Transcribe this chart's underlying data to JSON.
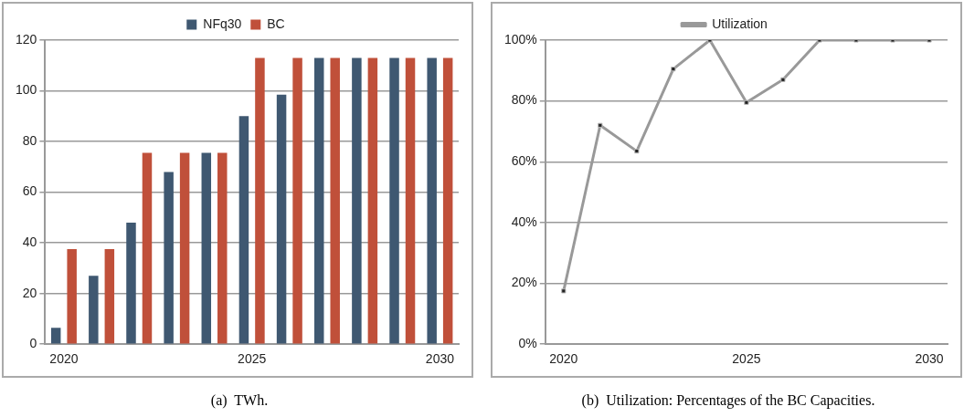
{
  "chart_data": [
    {
      "type": "bar",
      "title": "(a)  TWh.",
      "categories": [
        "2020",
        null,
        null,
        null,
        null,
        "2025",
        null,
        null,
        null,
        null,
        "2030"
      ],
      "series": [
        {
          "name": "NFq30",
          "color": "#3f5871",
          "values": [
            6.5,
            27,
            48,
            68,
            75.5,
            90,
            98.5,
            113,
            113,
            113,
            113
          ]
        },
        {
          "name": "BC",
          "color": "#c0503a",
          "values": [
            37.5,
            37.5,
            75.5,
            75.5,
            75.5,
            113,
            113,
            113,
            113,
            113,
            113
          ]
        }
      ],
      "ylim": [
        0,
        120
      ],
      "yticks": [
        0,
        20,
        40,
        60,
        80,
        100,
        120
      ],
      "grid": "y",
      "legend": "top"
    },
    {
      "type": "line",
      "title": "(b)  Utilization: Percentages of the BC Capacities.",
      "categories": [
        "2020",
        null,
        null,
        null,
        null,
        "2025",
        null,
        null,
        null,
        null,
        "2030"
      ],
      "series": [
        {
          "name": "Utilization",
          "color": "#999999",
          "values": [
            17.5,
            72,
            63.5,
            90.5,
            100,
            79.5,
            87,
            100,
            100,
            100,
            100
          ]
        }
      ],
      "ylim": [
        0,
        100
      ],
      "yticks": [
        {
          "value": 0,
          "label": "0%"
        },
        {
          "value": 20,
          "label": "20%"
        },
        {
          "value": 40,
          "label": "40%"
        },
        {
          "value": 60,
          "label": "60%"
        },
        {
          "value": 80,
          "label": "80%"
        },
        {
          "value": 100,
          "label": "100%"
        }
      ],
      "grid": "y",
      "legend": "top",
      "marker": "square"
    }
  ]
}
